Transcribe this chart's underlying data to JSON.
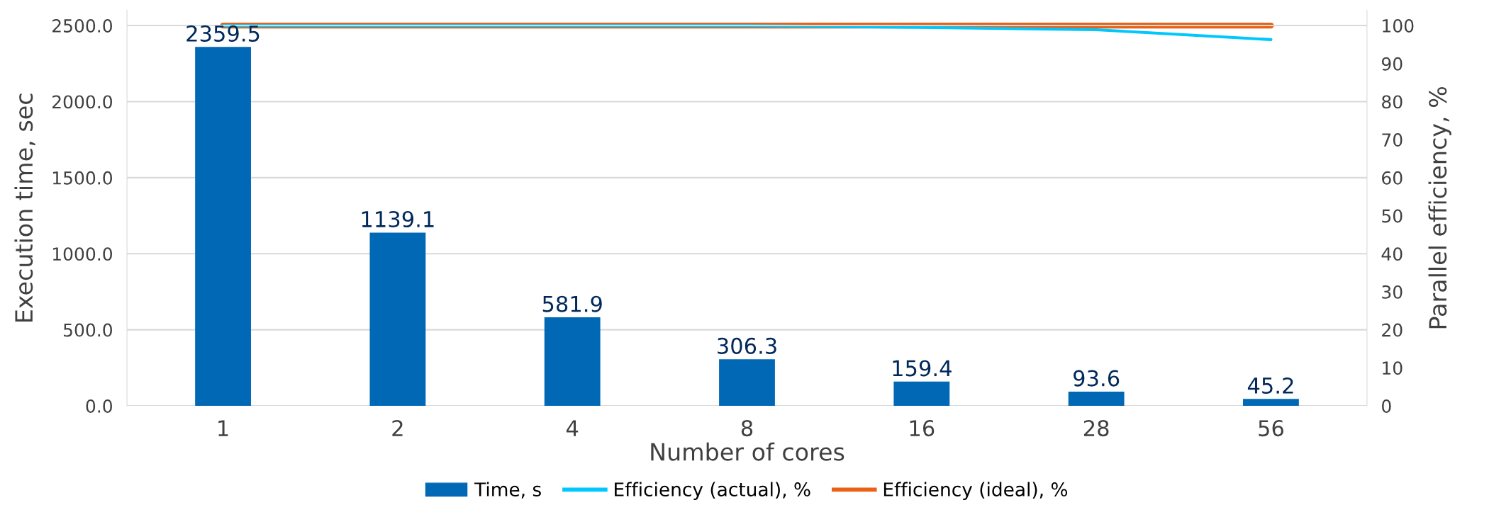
{
  "chart_data": {
    "type": "bar",
    "xlabel": "Number of cores",
    "ylabel": "Execution time, sec",
    "y2label": "Parallel efficiency, %",
    "categories": [
      "1",
      "2",
      "4",
      "8",
      "16",
      "28",
      "56"
    ],
    "series": [
      {
        "name": "Time, s",
        "color": "#0068b5",
        "values": [
          2359.5,
          1139.1,
          581.9,
          306.3,
          159.4,
          93.6,
          45.2
        ],
        "value_labels": [
          "2359.5",
          "1139.1",
          "581.9",
          "306.3",
          "159.4",
          "93.6",
          "45.2"
        ]
      },
      {
        "name": "Efficiency (actual), %",
        "type": "line",
        "axis": "y2",
        "color": "#00c7fd",
        "values": [
          100,
          100,
          100,
          100,
          99.5,
          98.9,
          96.3
        ]
      },
      {
        "name": "Efficiency (ideal), %",
        "type": "line",
        "axis": "y2",
        "color": "#e96115",
        "values": [
          100,
          100,
          100,
          100,
          100,
          100,
          100
        ]
      }
    ],
    "ylim": [
      0,
      2600
    ],
    "yticks": [
      {
        "value": 0,
        "label": "0.0"
      },
      {
        "value": 500,
        "label": "500.0"
      },
      {
        "value": 1000,
        "label": "1000.0"
      },
      {
        "value": 1500,
        "label": "1500.0"
      },
      {
        "value": 2000,
        "label": "2000.0"
      },
      {
        "value": 2500,
        "label": "2500.0"
      }
    ],
    "y2lim": [
      0,
      104
    ],
    "y2ticks": [
      0,
      10,
      20,
      30,
      40,
      50,
      60,
      70,
      80,
      90,
      100
    ],
    "grid": "y",
    "legend": "bottom",
    "marker": "none",
    "line_style": "solid"
  }
}
